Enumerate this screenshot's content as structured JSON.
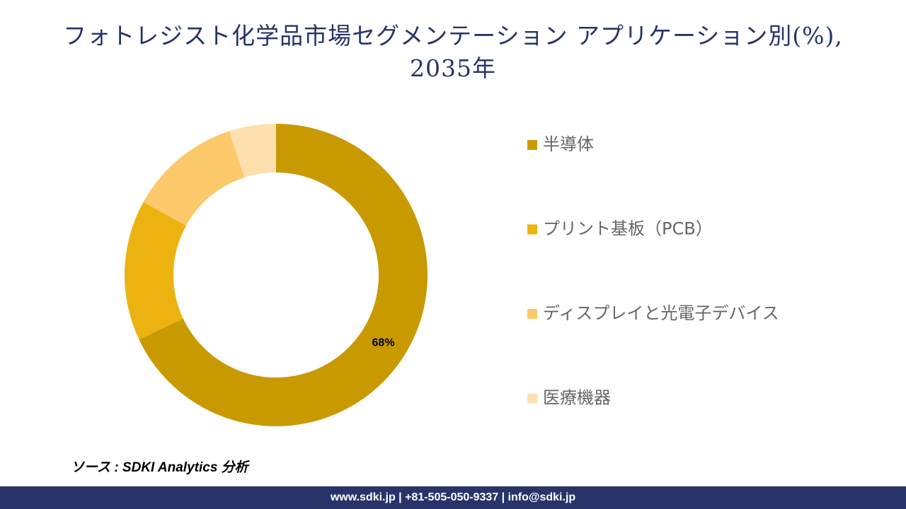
{
  "chart_data": {
    "type": "donut",
    "title": "フォトレジスト化学品市場セグメンテーション アプリケーション別(%), 2035年",
    "categories": [
      "半導体",
      "プリント基板（PCB）",
      "ディスプレイと光電子デバイス",
      "医療機器"
    ],
    "values": [
      68,
      15,
      12,
      5
    ],
    "value_labels": [
      "68%",
      null,
      null,
      null
    ],
    "colors": [
      "#c89a00",
      "#ecb310",
      "#fbc96a",
      "#fde0ad"
    ]
  },
  "source": "ソース : SDKI Analytics 分析",
  "footer": "www.sdki.jp | +81-505-050-9337 | info@sdki.jp"
}
